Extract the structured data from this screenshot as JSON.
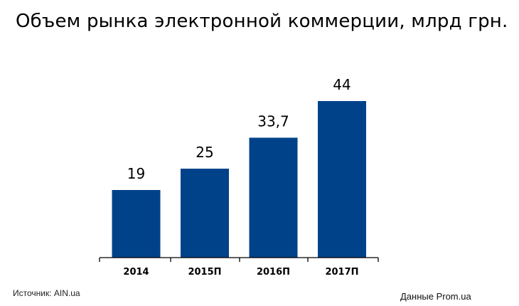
{
  "chart_data": {
    "type": "bar",
    "title": "Объем рынка электронной коммерции, млрд грн.",
    "categories": [
      "2014",
      "2015П",
      "2016П",
      "2017П"
    ],
    "values": [
      19,
      25,
      33.7,
      44
    ],
    "value_labels": [
      "19",
      "25",
      "33,7",
      "44"
    ],
    "xlabel": "",
    "ylabel": "",
    "ylim": [
      0,
      46
    ],
    "grid": false,
    "bar_color": "#00428a"
  },
  "footer": {
    "source": "Источник: AIN.ua",
    "credit": "Данные Prom.ua"
  }
}
